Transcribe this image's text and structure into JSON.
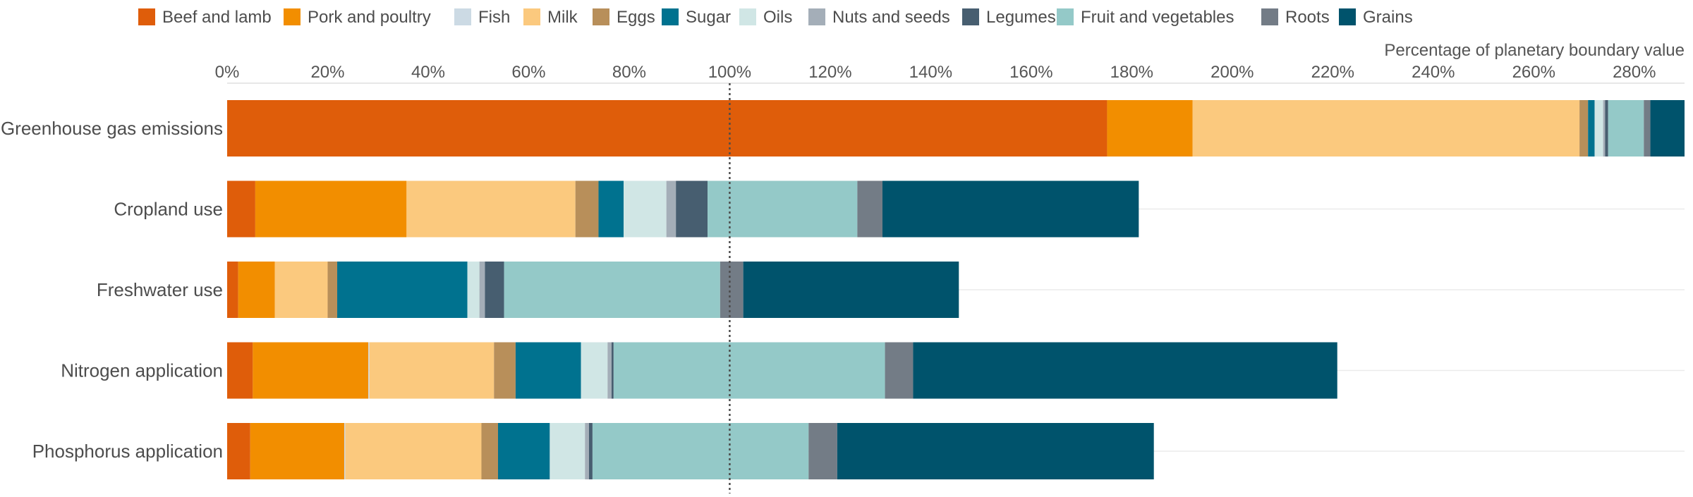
{
  "chart_data": {
    "type": "bar",
    "orientation": "horizontal",
    "stacked": true,
    "title": "",
    "xlabel": "Percentage of planetary boundary value",
    "ylabel": "",
    "xlim": [
      0,
      290
    ],
    "x_ticks": [
      0,
      20,
      40,
      60,
      80,
      100,
      120,
      140,
      160,
      180,
      200,
      220,
      240,
      260,
      280
    ],
    "tick_suffix": "%",
    "reference_line": {
      "x": 100,
      "style": "dotted"
    },
    "grid": "horizontal lines at each category",
    "legend_position": "top",
    "categories": [
      "Greenhouse gas emissions",
      "Cropland use",
      "Freshwater use",
      "Nitrogen application",
      "Phosphorus application"
    ],
    "series": [
      {
        "name": "Beef and lamb",
        "color": "#df5d0a",
        "values": [
          175.1,
          5.6,
          2.2,
          5.1,
          4.6
        ]
      },
      {
        "name": "Pork and poultry",
        "color": "#f28e00",
        "values": [
          17.0,
          30.1,
          7.3,
          23.0,
          18.7
        ]
      },
      {
        "name": "Fish",
        "color": "#ccdae4",
        "values": [
          0.0,
          0.0,
          0.0,
          0.2,
          0.2
        ]
      },
      {
        "name": "Milk",
        "color": "#fbc97e",
        "values": [
          77.0,
          33.6,
          10.5,
          24.8,
          27.1
        ]
      },
      {
        "name": "Eggs",
        "color": "#b88f5a",
        "values": [
          1.7,
          4.6,
          1.9,
          4.3,
          3.3
        ]
      },
      {
        "name": "Sugar",
        "color": "#00728f",
        "values": [
          1.3,
          5.0,
          25.9,
          13.0,
          10.3
        ]
      },
      {
        "name": "Oils",
        "color": "#d0e6e5",
        "values": [
          1.7,
          8.5,
          2.4,
          5.3,
          7.0
        ]
      },
      {
        "name": "Nuts and seeds",
        "color": "#a4aeb8",
        "values": [
          0.4,
          1.9,
          1.1,
          0.8,
          0.8
        ]
      },
      {
        "name": "Legumes",
        "color": "#475e70",
        "values": [
          0.6,
          6.3,
          3.8,
          0.4,
          0.7
        ]
      },
      {
        "name": "Fruit and vegetables",
        "color": "#94c9c8",
        "values": [
          7.1,
          29.8,
          43.0,
          54.0,
          43.0
        ]
      },
      {
        "name": "Roots",
        "color": "#737c86",
        "values": [
          1.3,
          5.0,
          4.6,
          5.6,
          5.7
        ]
      },
      {
        "name": "Grains",
        "color": "#00536c",
        "values": [
          6.8,
          51.0,
          42.9,
          84.4,
          63.0
        ]
      }
    ]
  }
}
